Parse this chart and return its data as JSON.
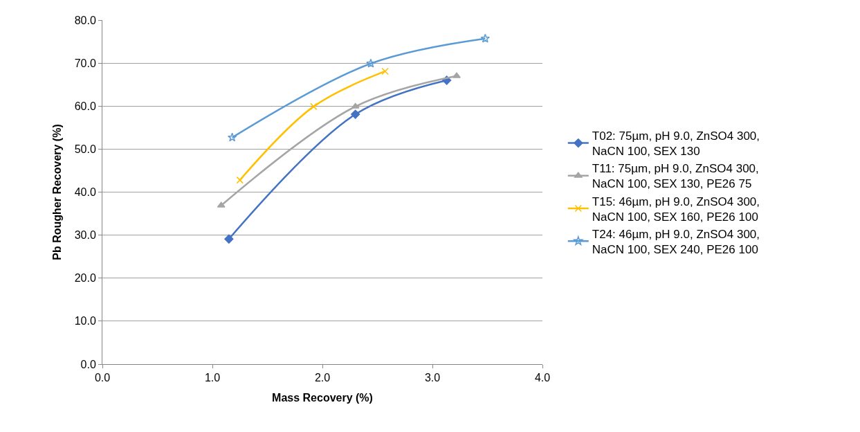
{
  "chart_data": {
    "type": "line",
    "xlabel": "Mass Recovery (%)",
    "ylabel": "Pb Rougher Recovery (%)",
    "xlim": [
      0,
      4
    ],
    "xticks": [
      {
        "value": 0,
        "label": "0.0"
      },
      {
        "value": 1,
        "label": "1.0"
      },
      {
        "value": 2,
        "label": "2.0"
      },
      {
        "value": 3,
        "label": "3.0"
      },
      {
        "value": 4,
        "label": "4.0"
      }
    ],
    "ylim": [
      0,
      80
    ],
    "yticks": [
      {
        "value": 0,
        "label": "0.0"
      },
      {
        "value": 10,
        "label": "10.0"
      },
      {
        "value": 20,
        "label": "20.0"
      },
      {
        "value": 30,
        "label": "30.0"
      },
      {
        "value": 40,
        "label": "40.0"
      },
      {
        "value": 50,
        "label": "50.0"
      },
      {
        "value": 60,
        "label": "60.0"
      },
      {
        "value": 70,
        "label": "70.0"
      },
      {
        "value": 80,
        "label": "80.0"
      }
    ],
    "grid": "y",
    "legend": "right",
    "series": [
      {
        "name": "T02: 75µm, pH 9.0, ZnSO4 300, NaCN 100, SEX 130",
        "color": "#4472c4",
        "marker": "diamond",
        "x": [
          1.15,
          2.3,
          3.13
        ],
        "values": [
          29.1,
          58.1,
          66.0
        ]
      },
      {
        "name": "T11: 75µm, pH 9.0, ZnSO4 300, NaCN 100, SEX 130, PE26 75",
        "color": "#a5a5a5",
        "marker": "triangle",
        "x": [
          1.08,
          2.3,
          3.22
        ],
        "values": [
          36.9,
          59.9,
          67.0
        ]
      },
      {
        "name": "T15: 46µm, pH 9.0, ZnSO4 300, NaCN 100, SEX 160, PE26 100",
        "color": "#ffc000",
        "marker": "cross",
        "x": [
          1.25,
          1.92,
          2.57
        ],
        "values": [
          42.8,
          59.9,
          68.1
        ]
      },
      {
        "name": "T24: 46µm, pH 9.0, ZnSO4 300, NaCN 100, SEX 240, PE26 100",
        "color": "#5b9bd5",
        "marker": "star",
        "x": [
          1.18,
          2.44,
          3.48
        ],
        "values": [
          52.7,
          69.9,
          75.7
        ]
      }
    ]
  }
}
